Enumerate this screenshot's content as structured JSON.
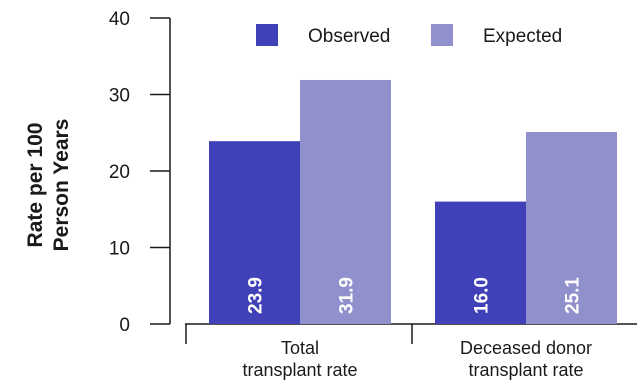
{
  "chart_data": {
    "type": "bar",
    "categories": [
      "Total\ntransplant rate",
      "Deceased donor\ntransplant rate"
    ],
    "series": [
      {
        "name": "Observed",
        "values": [
          23.9,
          16.0
        ],
        "color": "#4040b8"
      },
      {
        "name": "Expected",
        "values": [
          31.9,
          25.1
        ],
        "color": "#9090cc"
      }
    ],
    "data_labels": [
      [
        "23.9",
        "16.0"
      ],
      [
        "31.9",
        "25.1"
      ]
    ],
    "ylabel": "Rate per 100\nPerson Years",
    "xlabel": "",
    "ylim": [
      0,
      40
    ],
    "yticks": [
      0,
      10,
      20,
      30,
      40
    ],
    "legend_position": "top-right",
    "grid": false
  }
}
